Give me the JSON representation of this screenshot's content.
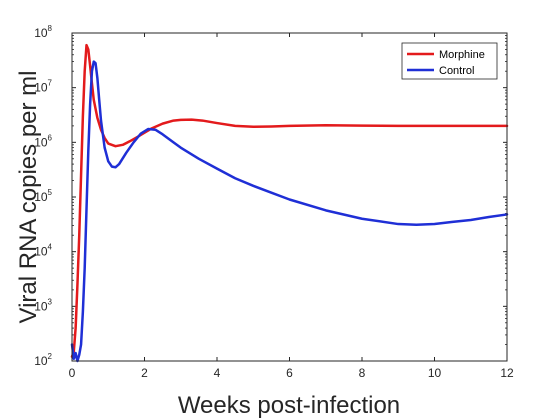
{
  "chart_data": {
    "type": "line",
    "title": "",
    "xlabel": "Weeks post-infection",
    "ylabel": "Viral RNA copies per ml",
    "xlim": [
      0,
      12
    ],
    "ylim_log10": [
      2,
      8
    ],
    "y_scale": "log",
    "x_ticks": [
      0,
      2,
      4,
      6,
      8,
      10,
      12
    ],
    "y_ticks": [
      {
        "base": "10",
        "exp": "2"
      },
      {
        "base": "10",
        "exp": "3"
      },
      {
        "base": "10",
        "exp": "4"
      },
      {
        "base": "10",
        "exp": "5"
      },
      {
        "base": "10",
        "exp": "6"
      },
      {
        "base": "10",
        "exp": "7"
      },
      {
        "base": "10",
        "exp": "8"
      }
    ],
    "grid": false,
    "legend_position": "top-right",
    "series": [
      {
        "name": "Morphine",
        "color": "#e31a1c",
        "points": [
          [
            0.0,
            120
          ],
          [
            0.05,
            150
          ],
          [
            0.1,
            400
          ],
          [
            0.15,
            2500
          ],
          [
            0.2,
            20000
          ],
          [
            0.25,
            250000
          ],
          [
            0.3,
            3000000
          ],
          [
            0.35,
            20000000
          ],
          [
            0.4,
            60000000
          ],
          [
            0.45,
            50000000
          ],
          [
            0.5,
            25000000
          ],
          [
            0.55,
            12000000
          ],
          [
            0.6,
            6000000
          ],
          [
            0.7,
            2800000
          ],
          [
            0.8,
            1700000
          ],
          [
            0.9,
            1200000
          ],
          [
            1.0,
            950000
          ],
          [
            1.2,
            850000
          ],
          [
            1.4,
            900000
          ],
          [
            1.6,
            1050000
          ],
          [
            1.8,
            1250000
          ],
          [
            2.0,
            1500000
          ],
          [
            2.2,
            1800000
          ],
          [
            2.5,
            2200000
          ],
          [
            2.8,
            2500000
          ],
          [
            3.0,
            2580000
          ],
          [
            3.3,
            2600000
          ],
          [
            3.6,
            2500000
          ],
          [
            4.0,
            2250000
          ],
          [
            4.5,
            2000000
          ],
          [
            5.0,
            1930000
          ],
          [
            5.5,
            1950000
          ],
          [
            6.0,
            2000000
          ],
          [
            7.0,
            2050000
          ],
          [
            8.0,
            2020000
          ],
          [
            9.0,
            2000000
          ],
          [
            10.0,
            2000000
          ],
          [
            11.0,
            2000000
          ],
          [
            12.0,
            2000000
          ]
        ]
      },
      {
        "name": "Control",
        "color": "#1f2fd6",
        "points": [
          [
            0.0,
            200
          ],
          [
            0.05,
            110
          ],
          [
            0.1,
            140
          ],
          [
            0.15,
            100
          ],
          [
            0.2,
            130
          ],
          [
            0.25,
            200
          ],
          [
            0.3,
            800
          ],
          [
            0.35,
            5000
          ],
          [
            0.4,
            60000
          ],
          [
            0.45,
            700000
          ],
          [
            0.5,
            5000000
          ],
          [
            0.55,
            20000000
          ],
          [
            0.6,
            30000000
          ],
          [
            0.65,
            28000000
          ],
          [
            0.7,
            15000000
          ],
          [
            0.75,
            6000000
          ],
          [
            0.8,
            2500000
          ],
          [
            0.9,
            800000
          ],
          [
            1.0,
            450000
          ],
          [
            1.1,
            360000
          ],
          [
            1.2,
            350000
          ],
          [
            1.3,
            400000
          ],
          [
            1.5,
            650000
          ],
          [
            1.7,
            1000000
          ],
          [
            1.9,
            1450000
          ],
          [
            2.1,
            1750000
          ],
          [
            2.3,
            1700000
          ],
          [
            2.5,
            1400000
          ],
          [
            2.8,
            1000000
          ],
          [
            3.0,
            800000
          ],
          [
            3.5,
            500000
          ],
          [
            4.0,
            330000
          ],
          [
            4.5,
            220000
          ],
          [
            5.0,
            160000
          ],
          [
            5.5,
            120000
          ],
          [
            6.0,
            90000
          ],
          [
            7.0,
            57000
          ],
          [
            8.0,
            40000
          ],
          [
            9.0,
            32000
          ],
          [
            9.5,
            31000
          ],
          [
            10.0,
            32000
          ],
          [
            10.5,
            35000
          ],
          [
            11.0,
            38000
          ],
          [
            11.5,
            43000
          ],
          [
            12.0,
            48000
          ]
        ]
      }
    ]
  }
}
